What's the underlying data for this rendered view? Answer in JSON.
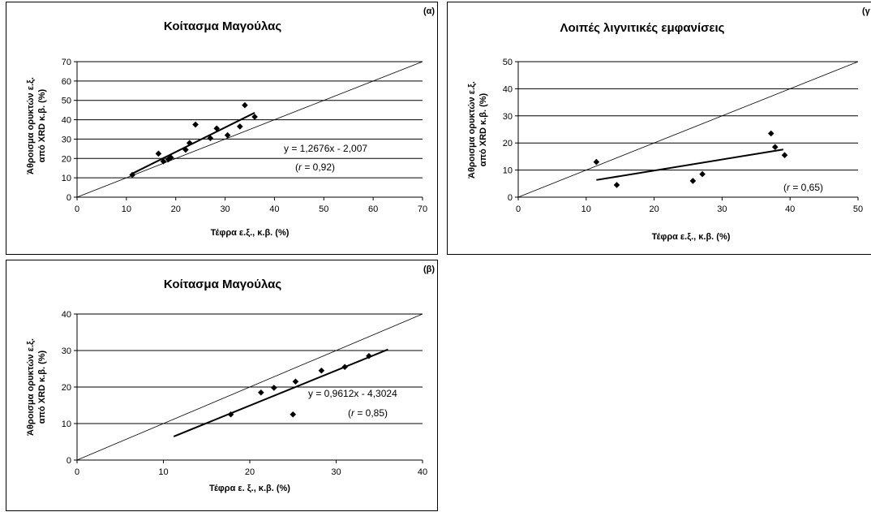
{
  "chart_data": [
    {
      "id": "a",
      "type": "scatter",
      "panel_tag": "(α)",
      "title": "Κοίτασμα Μαγούλας",
      "xlabel": "Τέφρα ε.ξ., κ.β. (%)",
      "ylabel_line1": "Άθροισμα ορυκτών ε.ξ.",
      "ylabel_line2": "από XRD κ.β. (%)",
      "xlim": [
        0,
        70
      ],
      "ylim": [
        0,
        70
      ],
      "xticks": [
        0,
        10,
        20,
        30,
        40,
        50,
        60,
        70
      ],
      "yticks": [
        0,
        10,
        20,
        30,
        40,
        50,
        60,
        70
      ],
      "grid": "horizontal",
      "points": [
        {
          "x": 11.2,
          "y": 11.5
        },
        {
          "x": 16.5,
          "y": 22.5
        },
        {
          "x": 17.5,
          "y": 18.5
        },
        {
          "x": 18.5,
          "y": 19.5
        },
        {
          "x": 19.0,
          "y": 20.5
        },
        {
          "x": 22.0,
          "y": 24.5
        },
        {
          "x": 22.8,
          "y": 28.0
        },
        {
          "x": 24.0,
          "y": 37.5
        },
        {
          "x": 27.0,
          "y": 30.5
        },
        {
          "x": 28.3,
          "y": 35.5
        },
        {
          "x": 30.5,
          "y": 32.0
        },
        {
          "x": 33.0,
          "y": 36.5
        },
        {
          "x": 34.0,
          "y": 47.5
        },
        {
          "x": 36.0,
          "y": 41.5
        }
      ],
      "trendline": {
        "x_range": [
          11.2,
          36.0
        ],
        "slope": 1.2676,
        "intercept": -2.007
      },
      "equation": "y = 1,2676x - 2,007",
      "r_label": "r",
      "r_value": " = 0,92)"
    },
    {
      "id": "g",
      "type": "scatter",
      "panel_tag": "(γ",
      "title": "Λοιπές λιγνιτικές εμφανίσεις",
      "xlabel": "Τέφρα ε.ξ., κ.β. (%)",
      "ylabel_line1": "Άθροισμα ορυκτών ε.ξ.",
      "ylabel_line2": "από XRD κ.β. (%)",
      "xlim": [
        0,
        50
      ],
      "ylim": [
        0,
        50
      ],
      "xticks": [
        0,
        10,
        20,
        30,
        40,
        50
      ],
      "yticks": [
        0,
        10,
        20,
        30,
        40,
        50
      ],
      "grid": "horizontal",
      "points": [
        {
          "x": 11.5,
          "y": 13.0
        },
        {
          "x": 14.5,
          "y": 4.5
        },
        {
          "x": 25.7,
          "y": 6.0
        },
        {
          "x": 27.1,
          "y": 8.5
        },
        {
          "x": 37.2,
          "y": 23.5
        },
        {
          "x": 37.8,
          "y": 18.5
        },
        {
          "x": 39.2,
          "y": 15.5
        }
      ],
      "trendline": {
        "x_range": [
          11.5,
          39.0
        ],
        "slope": 0.409,
        "intercept": 1.64
      },
      "equation": "",
      "r_label": "r",
      "r_value": " = 0,65)"
    },
    {
      "id": "b",
      "type": "scatter",
      "panel_tag": "(β)",
      "title": "Κοίτασμα Μαγούλας",
      "xlabel": "Τέφρα ε. ξ., κ.β. (%)",
      "ylabel_line1": "Άθροισμα ορυκτών ε.ξ.",
      "ylabel_line2": "από XRD κ.β. (%)",
      "xlim": [
        0,
        40
      ],
      "ylim": [
        0,
        40
      ],
      "xticks": [
        0,
        10,
        20,
        30,
        40
      ],
      "yticks": [
        0,
        10,
        20,
        30,
        40
      ],
      "grid": "horizontal",
      "points": [
        {
          "x": 17.8,
          "y": 12.5
        },
        {
          "x": 21.3,
          "y": 18.5
        },
        {
          "x": 22.8,
          "y": 19.8
        },
        {
          "x": 25.0,
          "y": 12.5
        },
        {
          "x": 25.3,
          "y": 21.5
        },
        {
          "x": 28.3,
          "y": 24.5
        },
        {
          "x": 31.0,
          "y": 25.5
        },
        {
          "x": 33.8,
          "y": 28.5
        }
      ],
      "trendline": {
        "x_range": [
          11.2,
          36.0
        ],
        "slope": 0.9612,
        "intercept": -4.3024
      },
      "equation": "y = 0,9612x - 4,3024",
      "r_label": "r",
      "r_value": " = 0,85)"
    }
  ]
}
